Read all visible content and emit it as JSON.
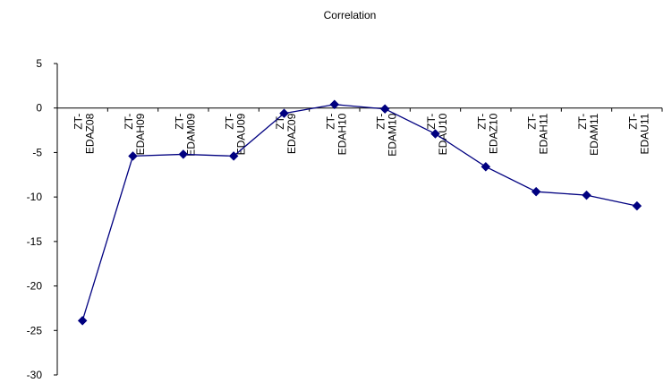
{
  "chart_data": {
    "type": "line",
    "title": "Correlation",
    "xlabel": "",
    "ylabel": "",
    "categories": [
      "ZT-EDAZ08",
      "ZT-EDAH09",
      "ZT-EDAM09",
      "ZT-EDAU09",
      "ZT-EDAZ09",
      "ZT-EDAH10",
      "ZT-EDAM10",
      "ZT-EDAU10",
      "ZT-EDAZ10",
      "ZT-EDAH11",
      "ZT-EDAM11",
      "ZT-EDAU11"
    ],
    "category_lines": [
      [
        "ZT-",
        "EDAZ08"
      ],
      [
        "ZT-",
        "EDAH09"
      ],
      [
        "ZT-",
        "EDAM09"
      ],
      [
        "ZT-",
        "EDAU09"
      ],
      [
        "ZT-",
        "EDAZ09"
      ],
      [
        "ZT-",
        "EDAH10"
      ],
      [
        "ZT-",
        "EDAM10"
      ],
      [
        "ZT-",
        "EDAU10"
      ],
      [
        "ZT-",
        "EDAZ10"
      ],
      [
        "ZT-",
        "EDAH11"
      ],
      [
        "ZT-",
        "EDAM11"
      ],
      [
        "ZT-",
        "EDAU11"
      ]
    ],
    "series": [
      {
        "values": [
          -23.9,
          -5.4,
          -5.2,
          -5.4,
          -0.6,
          0.4,
          -0.1,
          -2.9,
          -6.6,
          -9.4,
          -9.8,
          -11.0
        ],
        "color": "#000080",
        "marker": "diamond"
      }
    ],
    "ylim": [
      -30,
      5
    ],
    "yticks": [
      5,
      0,
      -5,
      -10,
      -15,
      -20,
      -25,
      -30
    ],
    "grid": false,
    "legend": "none"
  }
}
